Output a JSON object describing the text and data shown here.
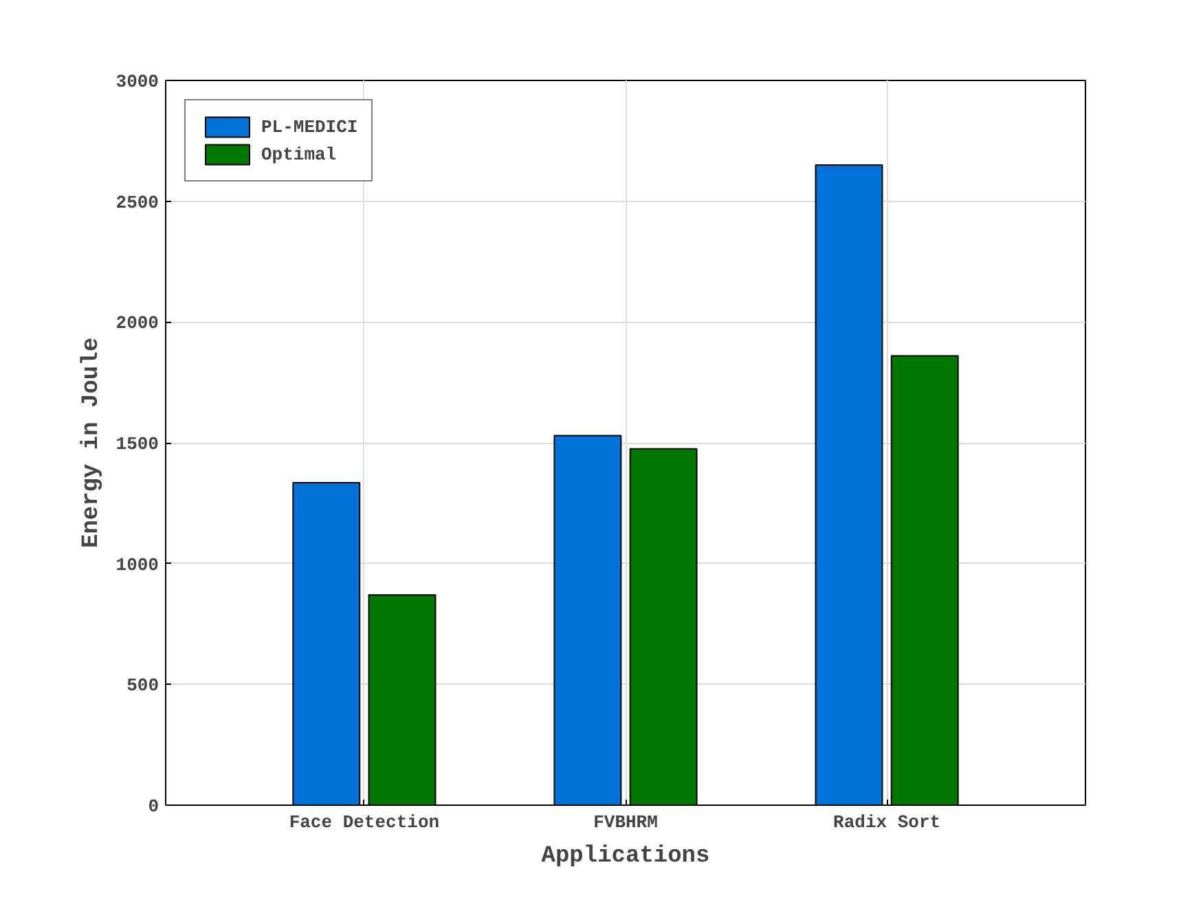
{
  "chart_data": {
    "type": "bar",
    "xlabel": "Applications",
    "ylabel": "Energy in Joule",
    "categories": [
      "Face Detection",
      "FVBHRM",
      "Radix Sort"
    ],
    "series": [
      {
        "name": "PL-MEDICI",
        "color": "#0072d8",
        "values": [
          1335,
          1530,
          2650
        ]
      },
      {
        "name": "Optimal",
        "color": "#007800",
        "values": [
          870,
          1475,
          1860
        ]
      }
    ],
    "ylim": [
      0,
      3000
    ],
    "yticks": [
      0,
      500,
      1000,
      1500,
      2000,
      2500,
      3000
    ],
    "grid": true,
    "legend": "top left"
  }
}
